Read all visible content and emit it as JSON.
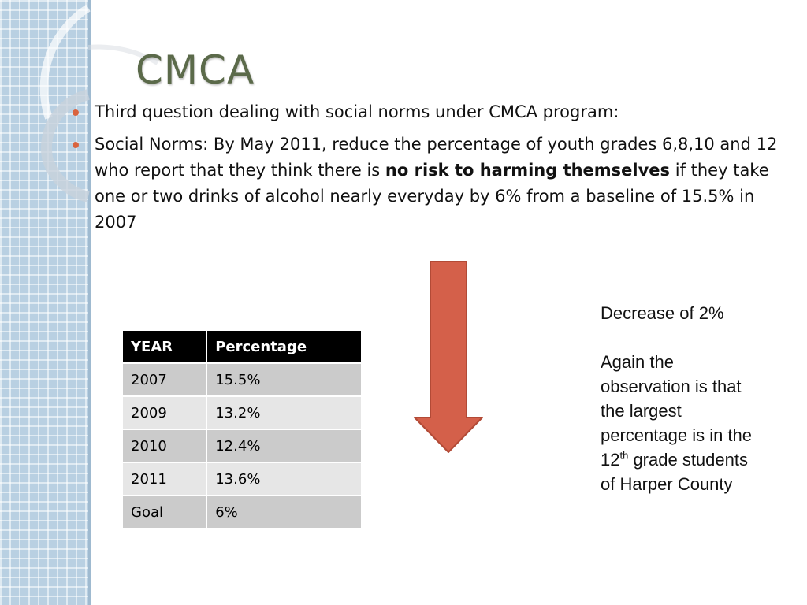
{
  "slide": {
    "title": "CMCA",
    "bullets": [
      {
        "text": "Third question dealing with social norms under CMCA program:"
      },
      {
        "before": "Social Norms:  By May 2011, reduce the percentage of youth grades 6,8,10 and 12 who report that they think there is ",
        "bold": "no risk to harming themselves",
        "after": " if they take one or two drinks of alcohol nearly everyday by 6% from a baseline of 15.5% in 2007"
      }
    ],
    "table": {
      "headers": [
        "YEAR",
        "Percentage"
      ],
      "rows": [
        [
          "2007",
          "15.5%"
        ],
        [
          "2009",
          "13.2%"
        ],
        [
          "2010",
          "12.4%"
        ],
        [
          "2011",
          "13.6%"
        ],
        [
          "Goal",
          "6%"
        ]
      ]
    },
    "note": {
      "heading": "Decrease of 2%",
      "body_before": "Again the observation is that the largest percentage is in the 12",
      "body_sup": "th",
      "body_after": " grade students of Harper County"
    }
  },
  "colors": {
    "accent_arrow": "#d4604a",
    "bullet": "#d9633e",
    "title": "#5b6a4a",
    "sidebar": "#b9d0e2"
  },
  "icons": {
    "arrow": "down-arrow-icon"
  }
}
